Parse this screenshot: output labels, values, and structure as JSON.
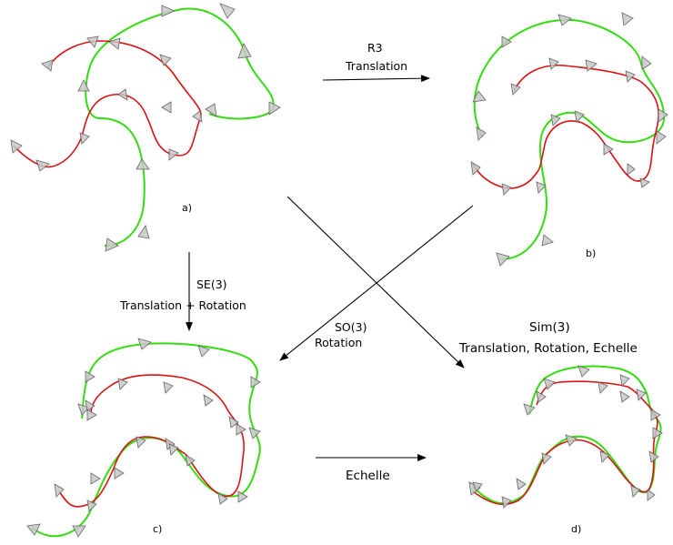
{
  "colors": {
    "green": "#33dd11",
    "red": "#dd1111",
    "arrow": "#000000",
    "marker_fill": "#c8c8c8"
  },
  "panels": {
    "a": "a)",
    "b": "b)",
    "c": "c)",
    "d": "d)"
  },
  "arrows": {
    "r3": {
      "line1": "R3",
      "line2": "Translation"
    },
    "se3": {
      "line1": "SE(3)",
      "line2": "Translation + Rotation"
    },
    "so3": {
      "line1": "SO(3)",
      "line2": "Rotation"
    },
    "sim3": {
      "line1": "Sim(3)",
      "line2": "Translation, Rotation, Echelle"
    },
    "scale": {
      "line1": "Echelle"
    }
  }
}
